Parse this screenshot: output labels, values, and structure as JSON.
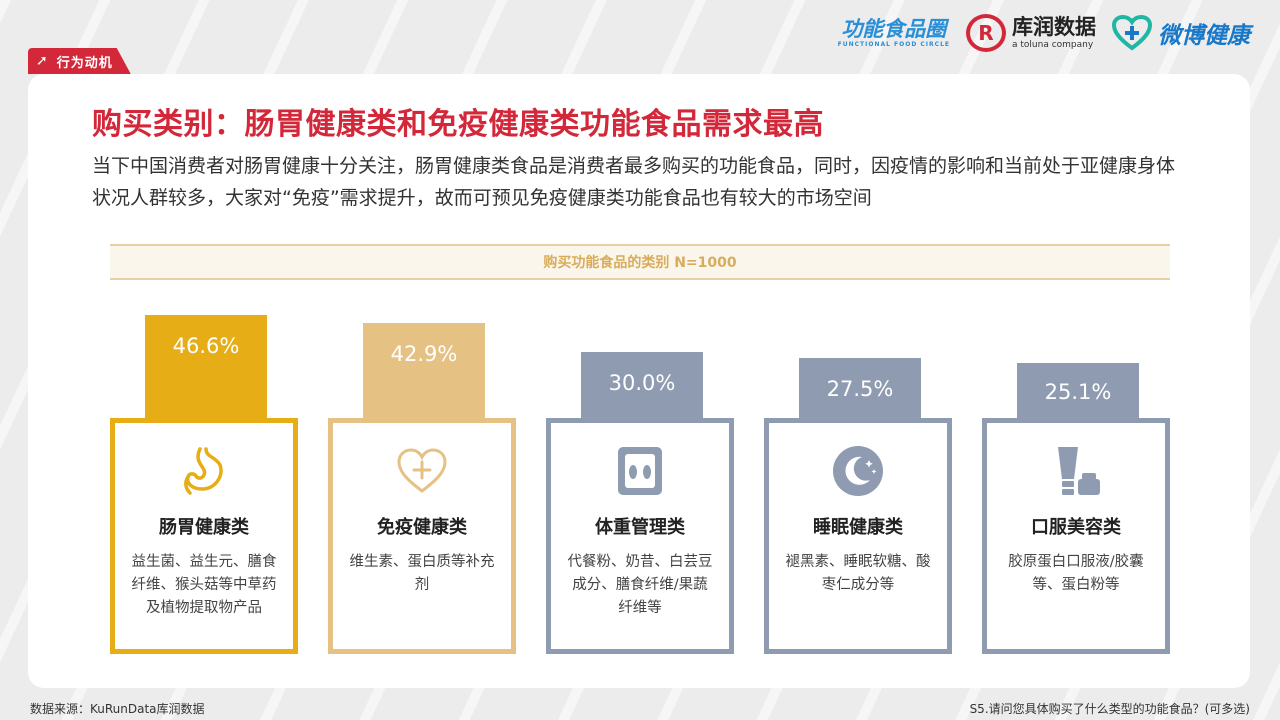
{
  "tag": {
    "label": "行为动机"
  },
  "logos": {
    "gnsp": "功能食品圈",
    "gnsp_sub": "FUNCTIONAL FOOD CIRCLE",
    "kr_mark": "R",
    "kr": "库润数据",
    "kr_sub": "a toluna company",
    "weibo": "微博健康"
  },
  "title": "购买类别：肠胃健康类和免疫健康类功能食品需求最高",
  "description": "当下中国消费者对肠胃健康十分关注，肠胃健康类食品是消费者最多购买的功能食品，同时，因疫情的影响和当前处于亚健康身体状况人群较多，大家对“免疫”需求提升，故而可预见免疫健康类功能食品也有较大的市场空间",
  "chart_data": {
    "type": "bar",
    "title": "购买功能食品的类别 N=1000",
    "categories": [
      "肠胃健康类",
      "免疫健康类",
      "体重管理类",
      "睡眠健康类",
      "口服美容类"
    ],
    "values": [
      46.6,
      42.9,
      30.0,
      27.5,
      25.1
    ],
    "value_labels": [
      "46.6%",
      "42.9%",
      "30.0%",
      "27.5%",
      "25.1%"
    ],
    "unit": "%",
    "descriptions": [
      "益生菌、益生元、膳食纤维、猴头菇等中草药及植物提取物产品",
      "维生素、蛋白质等补充剂",
      "代餐粉、奶昔、白芸豆成分、膳食纤维/果蔬纤维等",
      "褪黑素、睡眠软糖、酸枣仁成分等",
      "胶原蛋白口服液/胶囊等、蛋白粉等"
    ],
    "icons": [
      "stomach-icon",
      "heart-plus-icon",
      "scale-icon",
      "moon-icon",
      "cosmetic-bottle-icon"
    ],
    "colors": [
      "#e6ad17",
      "#e5c184",
      "#8f9bb0",
      "#8f9bb0",
      "#8f9bb0"
    ]
  },
  "footer": {
    "source": "数据来源：KuRunData库润数据",
    "question": "S5.请问您具体购买了什么类型的功能食品？(可多选)"
  }
}
